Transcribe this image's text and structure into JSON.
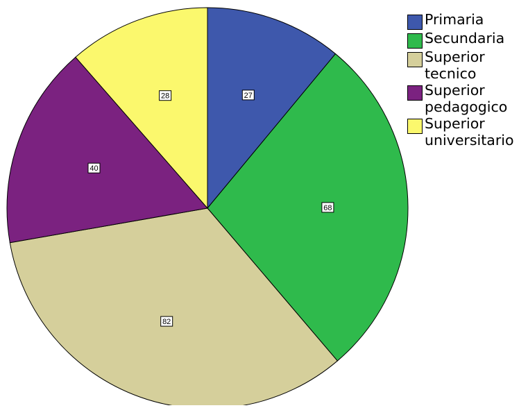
{
  "chart_data": {
    "type": "pie",
    "categories": [
      "Primaria",
      "Secundaria",
      "Superior\ntecnico",
      "Superior\npedagogico",
      "Superior\nuniversitario"
    ],
    "values": [
      27,
      68,
      82,
      40,
      28
    ],
    "colors": [
      "#3e58ac",
      "#2fba4c",
      "#d5cf9b",
      "#7b2280",
      "#fbf86d"
    ],
    "start_angle": "12 o'clock",
    "direction": "clockwise",
    "data_labels": [
      "27",
      "68",
      "82",
      "40",
      "28"
    ],
    "legend_position": "right",
    "title": "",
    "xlabel": "",
    "ylabel": ""
  },
  "legend": {
    "items": [
      {
        "label": "Primaria",
        "color": "#3e58ac"
      },
      {
        "label": "Secundaria",
        "color": "#2fba4c"
      },
      {
        "label": "Superior\ntecnico",
        "color": "#d5cf9b"
      },
      {
        "label": "Superior\npedagogico",
        "color": "#7b2280"
      },
      {
        "label": "Superior\nuniversitario",
        "color": "#fbf86d"
      }
    ]
  }
}
